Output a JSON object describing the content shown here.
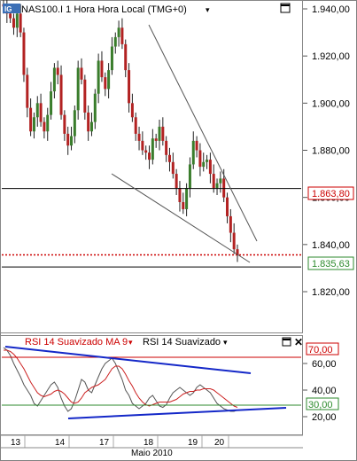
{
  "chart_data": [
    {
      "type": "candlestick",
      "title": "NAS100.I 1 Hora Hora Local (TMG+0)",
      "ylim": [
        1813,
        1943
      ],
      "y_ticks": [
        "1.940,00",
        "1.920,00",
        "1.900,00",
        "1.880,00",
        "1.860,00",
        "1.840,00",
        "1.820,00"
      ],
      "y_tick_values": [
        1940,
        1920,
        1900,
        1880,
        1860,
        1840,
        1820
      ],
      "x_day_labels": [
        "13",
        "14",
        "17",
        "18",
        "19",
        "20"
      ],
      "x_caption": "Maio 2010",
      "annotations": {
        "horizontal_line_price": "1.863,80",
        "horizontal_line_value": 1863.8,
        "last_price": "1.835,63",
        "last_price_value": 1835.63,
        "support_line_value": 1830.5
      },
      "ohlc_close_path": [
        1941,
        1938,
        1936,
        1932,
        1938,
        1930,
        1912,
        1898,
        1888,
        1894,
        1900,
        1892,
        1888,
        1895,
        1905,
        1915,
        1912,
        1895,
        1887,
        1882,
        1886,
        1897,
        1915,
        1910,
        1896,
        1888,
        1892,
        1904,
        1918,
        1911,
        1906,
        1914,
        1924,
        1928,
        1932,
        1925,
        1914,
        1900,
        1894,
        1887,
        1884,
        1880,
        1879,
        1876,
        1885,
        1884,
        1890,
        1884,
        1878,
        1875,
        1870,
        1864,
        1858,
        1855,
        1864,
        1874,
        1884,
        1880,
        1873,
        1875,
        1876,
        1870,
        1864,
        1866,
        1868,
        1860,
        1852,
        1845,
        1838,
        1835.6
      ]
    },
    {
      "type": "line",
      "title": "RSI 14 Suavizado MA 9",
      "title2": "RSI 14 Suavizado",
      "ylim": [
        10,
        80
      ],
      "y_ticks": [
        "60,00",
        "40,00",
        "20,00"
      ],
      "y_tick_values": [
        60,
        40,
        20
      ],
      "levels": [
        {
          "label": "70,00",
          "value": 70
        },
        {
          "label": "30,00",
          "value": 30
        }
      ],
      "series": [
        {
          "name": "RSI 14 Suavizado",
          "color": "#555555",
          "values": [
            72,
            70,
            66,
            60,
            55,
            50,
            44,
            40,
            36,
            30,
            28,
            32,
            36,
            40,
            44,
            46,
            42,
            34,
            28,
            24,
            26,
            32,
            40,
            48,
            46,
            40,
            38,
            44,
            50,
            56,
            60,
            62,
            64,
            60,
            54,
            48,
            40,
            36,
            30,
            28,
            26,
            28,
            30,
            34,
            36,
            32,
            28,
            27,
            29,
            34,
            38,
            40,
            42,
            40,
            38,
            36,
            38,
            42,
            44,
            42,
            40,
            38,
            34,
            30,
            28,
            26,
            25,
            24,
            24,
            25
          ]
        },
        {
          "name": "RSI 14 Suavizado MA 9",
          "color": "#cc2222",
          "values": [
            70,
            70,
            69,
            67,
            64,
            60,
            56,
            51,
            46,
            42,
            38,
            36,
            35,
            36,
            37,
            39,
            40,
            39,
            37,
            34,
            31,
            30,
            31,
            34,
            38,
            40,
            42,
            43,
            44,
            46,
            48,
            52,
            56,
            58,
            58,
            56,
            52,
            47,
            43,
            38,
            34,
            31,
            29,
            28,
            29,
            30,
            31,
            31,
            31,
            31,
            32,
            33,
            35,
            37,
            38,
            39,
            39,
            40,
            40,
            41,
            41,
            41,
            40,
            38,
            36,
            34,
            32,
            30,
            28,
            27
          ]
        }
      ]
    }
  ],
  "icons": {
    "title_badge": "ig-logo",
    "menu_arrow": "triangle-down-icon",
    "maximize": "maximize-icon",
    "close": "close-icon"
  },
  "colors": {
    "bull": "#3a7d2c",
    "bear": "#b22222",
    "trend_blue": "#1428c8",
    "line_red": "#cc0000",
    "level_green": "#2c8a2c"
  }
}
